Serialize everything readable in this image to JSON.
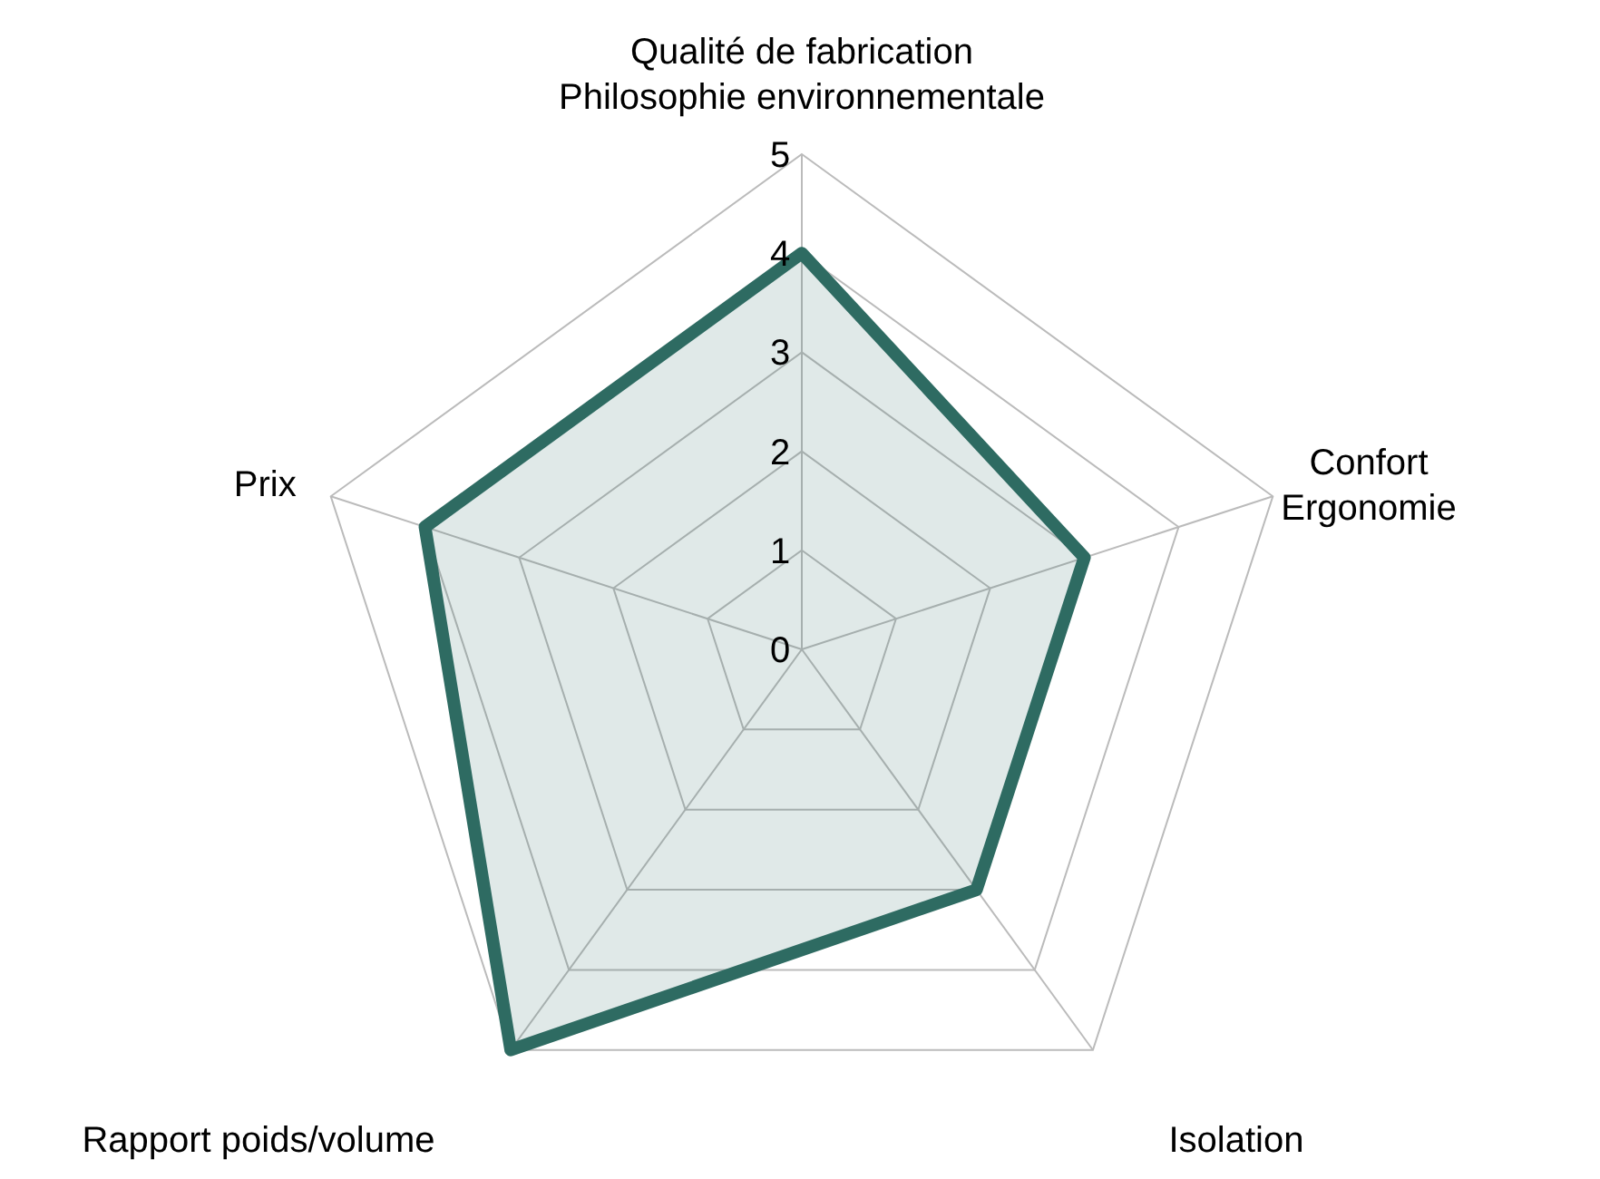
{
  "chart_data": {
    "type": "radar",
    "categories": [
      "Qualité de fabrication\nPhilosophie environnementale",
      "Confort\nErgonomie",
      "Isolation",
      "Rapport poids/volume",
      "Prix"
    ],
    "series": [
      {
        "color": "#2e6b62",
        "values": [
          4,
          3,
          3,
          5,
          4
        ]
      }
    ],
    "ylim": [
      0,
      5
    ],
    "yticks": [
      0,
      1,
      2,
      3,
      4,
      5
    ],
    "grid": true
  }
}
